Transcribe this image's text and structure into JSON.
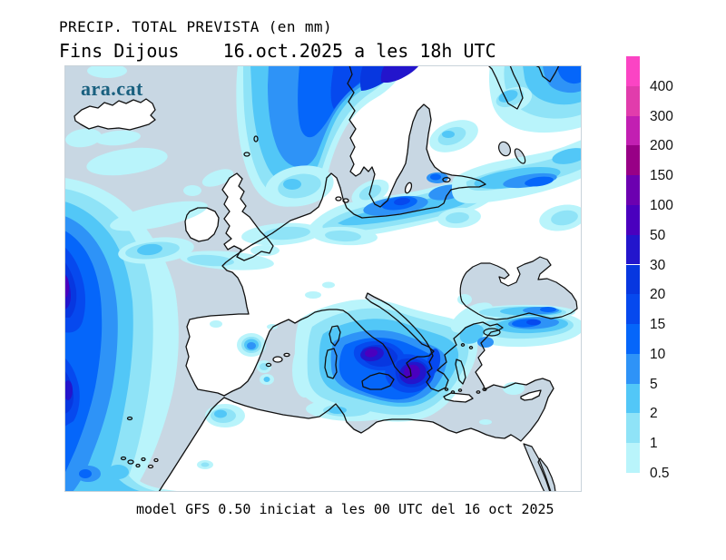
{
  "header": {
    "title": "PRECIP. TOTAL PREVISTA (en mm)",
    "subtitle": "Fins Dijous    16.oct.2025 a les 18h UTC"
  },
  "map": {
    "watermark": "ara.cat",
    "sea_color": "#C8D7E3",
    "land_color": "#FFFFFF",
    "coast_color": "#101010"
  },
  "legend": {
    "unit": "mm",
    "entries": [
      {
        "label": "400",
        "color": "#FB44C4"
      },
      {
        "label": "300",
        "color": "#E13CAC"
      },
      {
        "label": "200",
        "color": "#C21FB2"
      },
      {
        "label": "150",
        "color": "#980086"
      },
      {
        "label": "100",
        "color": "#6C00B0"
      },
      {
        "label": "50",
        "color": "#4A00BE"
      },
      {
        "label": "30",
        "color": "#2315CC"
      },
      {
        "label": "20",
        "color": "#0737E0"
      },
      {
        "label": "15",
        "color": "#0649EE"
      },
      {
        "label": "10",
        "color": "#0566FA"
      },
      {
        "label": "5",
        "color": "#2E93F7"
      },
      {
        "label": "2",
        "color": "#52C7F7"
      },
      {
        "label": "1",
        "color": "#8FE3F7"
      },
      {
        "label": "0.5",
        "color": "#B9F4FB"
      }
    ]
  },
  "footer": {
    "caption": "model GFS 0.50 iniciat a les 00 UTC del 16 oct 2025"
  }
}
